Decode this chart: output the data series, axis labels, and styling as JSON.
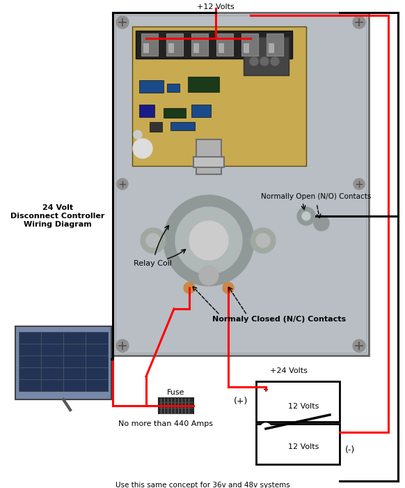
{
  "title": "24 Volt\nDisconnect Controller\nWiring Diagram",
  "bottom_text": "Use this same concept for 36v and 48v systems",
  "fuse_label": "Fuse",
  "fuse_sublabel": "No more than 440 Amps",
  "label_relay_coil": "Relay Coil",
  "label_no_contacts": "Normally Open (N/O) Contacts",
  "label_nc_contacts": "Normaly Closed (N/C) Contacts",
  "label_plus12": "+12 Volts",
  "label_plus24": "+24 Volts",
  "label_plus": "(+)",
  "label_minus": "(-)",
  "label_12v_top": "12 Volts",
  "label_12v_bot": "12 Volts",
  "bg_color": "#ffffff",
  "panel_metal": "#b8bec4",
  "panel_dark": "#8a9098",
  "pcb_color": "#c8aa50",
  "wire_red": "#ff0000",
  "wire_black": "#000000"
}
